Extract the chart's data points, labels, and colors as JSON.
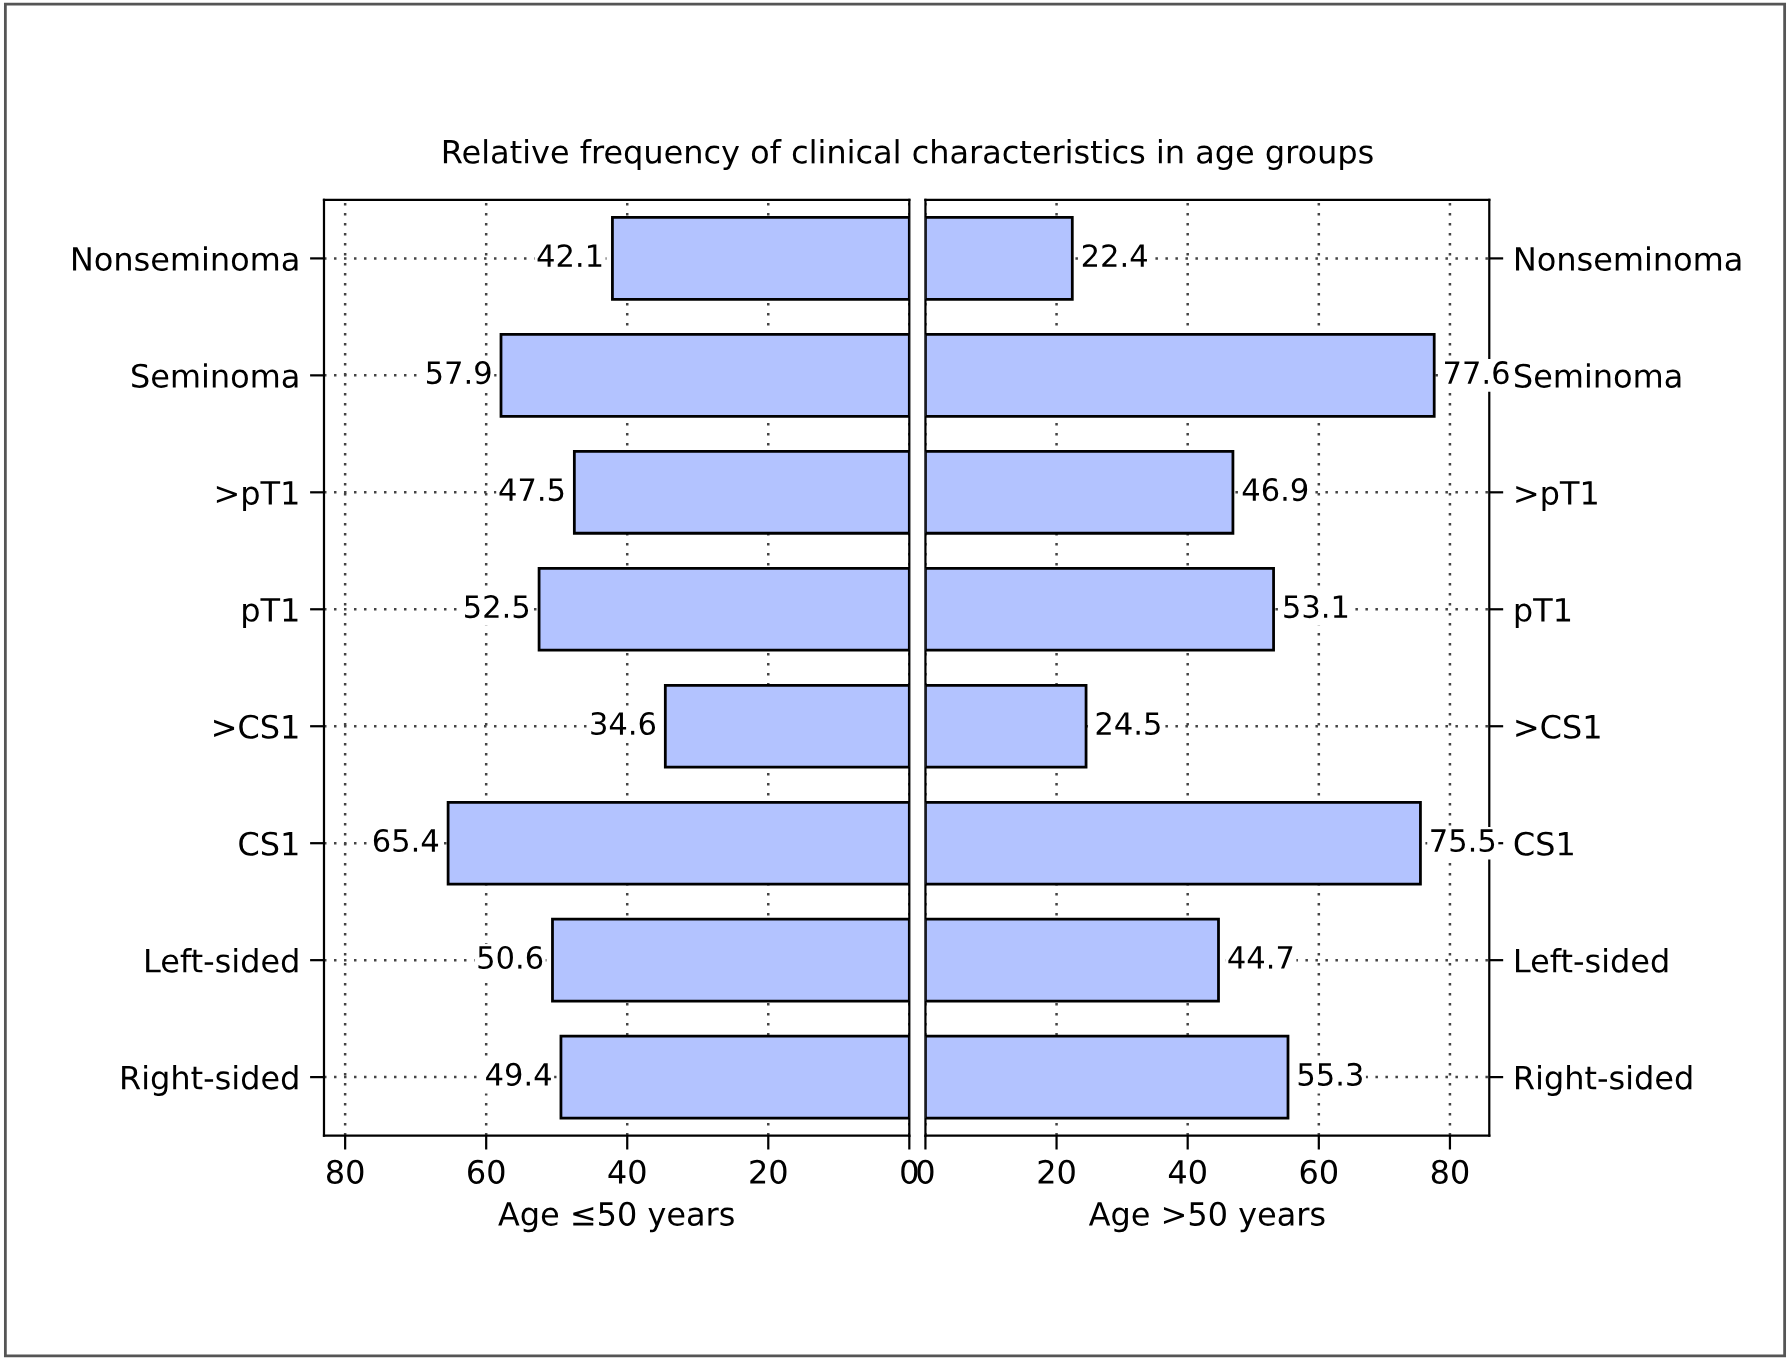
{
  "chart_data": [
    {
      "type": "bar",
      "orientation": "horizontal",
      "title": "Relative frequency of clinical characteristics in age groups",
      "xlabel": "Age ≤50 years",
      "categories": [
        "Nonseminoma",
        "Seminoma",
        ">pT1",
        "pT1",
        ">CS1",
        "CS1",
        "Left-sided",
        "Right-sided"
      ],
      "series": [
        {
          "color": "#b3c3ff",
          "values": [
            42.1,
            57.9,
            47.5,
            52.5,
            34.6,
            65.4,
            50.6,
            49.4
          ]
        }
      ],
      "xlim": [
        83,
        0
      ],
      "xticks": [
        80,
        60,
        40,
        20,
        0
      ],
      "grid": true,
      "data_labels": true
    },
    {
      "type": "bar",
      "orientation": "horizontal",
      "xlabel": "Age >50 years",
      "categories": [
        "Nonseminoma",
        "Seminoma",
        ">pT1",
        "pT1",
        ">CS1",
        "CS1",
        "Left-sided",
        "Right-sided"
      ],
      "series": [
        {
          "color": "#b3c3ff",
          "values": [
            22.4,
            77.6,
            46.9,
            53.1,
            24.5,
            75.5,
            44.7,
            55.3
          ]
        }
      ],
      "xlim": [
        0,
        86
      ],
      "xticks": [
        0,
        20,
        40,
        60,
        80
      ],
      "grid": true,
      "data_labels": true
    }
  ]
}
